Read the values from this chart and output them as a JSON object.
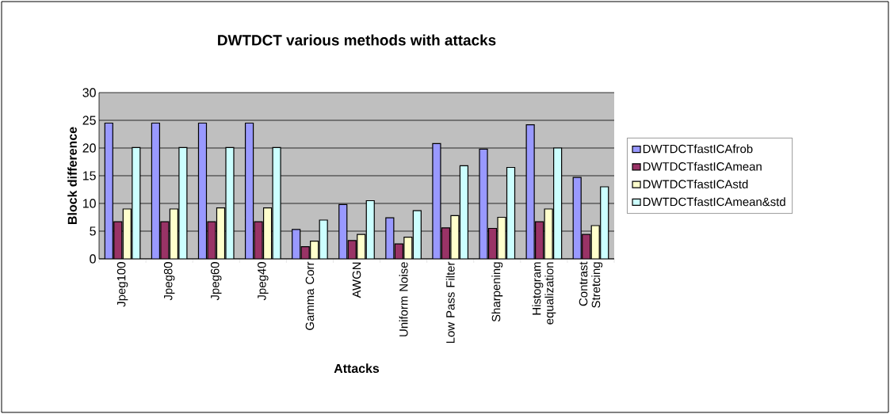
{
  "chart_data": {
    "type": "bar",
    "title": "DWTDCT various methods with attacks",
    "xlabel": "Attacks",
    "ylabel": "Block difference",
    "categories": [
      "Jpeg100",
      "Jpeg80",
      "Jpeg60",
      "Jpeg40",
      "Gamma Corr",
      "AWGN",
      "Uniform Noise",
      "Low Pass Filter",
      "Sharpening",
      "Histogram equalization",
      "Contrast Stretcing"
    ],
    "series": [
      {
        "name": "DWTDCTfastICAfrob",
        "color": "#9999ff",
        "values": [
          24.5,
          24.5,
          24.5,
          24.5,
          5.3,
          9.8,
          7.4,
          20.8,
          19.8,
          24.2,
          14.7
        ]
      },
      {
        "name": "DWTDCTfastICAmean",
        "color": "#993366",
        "values": [
          6.7,
          6.7,
          6.7,
          6.7,
          2.2,
          3.3,
          2.7,
          5.6,
          5.5,
          6.7,
          4.4
        ]
      },
      {
        "name": "DWTDCTfastICAstd",
        "color": "#ffffcc",
        "values": [
          9.0,
          9.0,
          9.2,
          9.2,
          3.2,
          4.4,
          3.9,
          7.8,
          7.5,
          9.0,
          6.0
        ]
      },
      {
        "name": "DWTDCTfastICAmean&std",
        "color": "#ccffff",
        "values": [
          20.1,
          20.1,
          20.1,
          20.1,
          7.0,
          10.5,
          8.7,
          16.8,
          16.5,
          20.0,
          13.0
        ]
      }
    ],
    "ylim": [
      0,
      30
    ],
    "yticks": [
      0,
      5,
      10,
      15,
      20,
      25,
      30
    ],
    "grid": "y",
    "legend": "right"
  }
}
